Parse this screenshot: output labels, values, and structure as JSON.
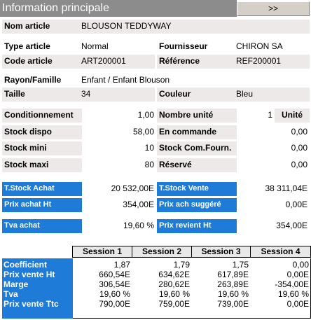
{
  "header": {
    "title": "Information principale",
    "next_label": ">>"
  },
  "fields": {
    "nom_article": {
      "label": "Nom article",
      "value": "BLOUSON TEDDYWAY"
    },
    "type_article": {
      "label": "Type article",
      "value": "Normal"
    },
    "fournisseur": {
      "label": "Fournisseur",
      "value": "CHIRON SA"
    },
    "code_article": {
      "label": "Code article",
      "value": "ART200001"
    },
    "reference": {
      "label": "Référence",
      "value": "REF200001"
    },
    "rayon_famille": {
      "label": "Rayon/Famille",
      "value": "Enfant / Enfant Blouson"
    },
    "taille": {
      "label": "Taille",
      "value": "34"
    },
    "couleur": {
      "label": "Couleur",
      "value": "Bleu"
    }
  },
  "stock": {
    "conditionnement": {
      "label": "Conditionnement",
      "value": "1,00"
    },
    "nombre_unite": {
      "label": "Nombre unité",
      "value": "1",
      "unit": "Unité"
    },
    "stock_dispo": {
      "label": "Stock dispo",
      "value": "58,00"
    },
    "en_commande": {
      "label": "En commande",
      "value": "0,00"
    },
    "stock_mini": {
      "label": "Stock mini",
      "value": "10"
    },
    "stock_com_fourn": {
      "label": "Stock Com.Fourn.",
      "value": "0,00"
    },
    "stock_maxi": {
      "label": "Stock maxi",
      "value": "80"
    },
    "reserve": {
      "label": "Réservé",
      "value": "0,00"
    }
  },
  "totals": {
    "t_stock_achat": {
      "label": "T.Stock Achat",
      "value": "20 532,00E"
    },
    "t_stock_vente": {
      "label": "T.Stock Vente",
      "value": "38 311,04E"
    },
    "prix_achat_ht": {
      "label": "Prix achat Ht",
      "value": "354,00E"
    },
    "prix_ach_suggere": {
      "label": "Prix ach suggéré",
      "value": "0,00E"
    },
    "tva_achat": {
      "label": "Tva achat",
      "value": "19,60 %"
    },
    "prix_revient_ht": {
      "label": "Prix revient Ht",
      "value": "354,00E"
    }
  },
  "sessions": {
    "headers": [
      "Session 1",
      "Session 2",
      "Session 3",
      "Session 4"
    ],
    "rows": [
      {
        "label": "Coefficient",
        "values": [
          "1,87",
          "1,79",
          "1,75",
          "0,00"
        ]
      },
      {
        "label": "Prix vente Ht",
        "values": [
          "660,54E",
          "634,62E",
          "617,89E",
          "0,00E"
        ]
      },
      {
        "label": "Marge",
        "values": [
          "306,54E",
          "280,62E",
          "263,89E",
          "-354,00E"
        ]
      },
      {
        "label": "Tva",
        "values": [
          "19,60 %",
          "19,60 %",
          "19,60 %",
          "19,60 %"
        ]
      },
      {
        "label": "Prix vente Ttc",
        "values": [
          "790,00E",
          "759,00E",
          "739,00E",
          "0,00E"
        ]
      }
    ]
  },
  "colors": {
    "accent_blue": "#1e7bd8",
    "header_gray": "#8c8c8c",
    "field_shade": "#ece9e8"
  }
}
